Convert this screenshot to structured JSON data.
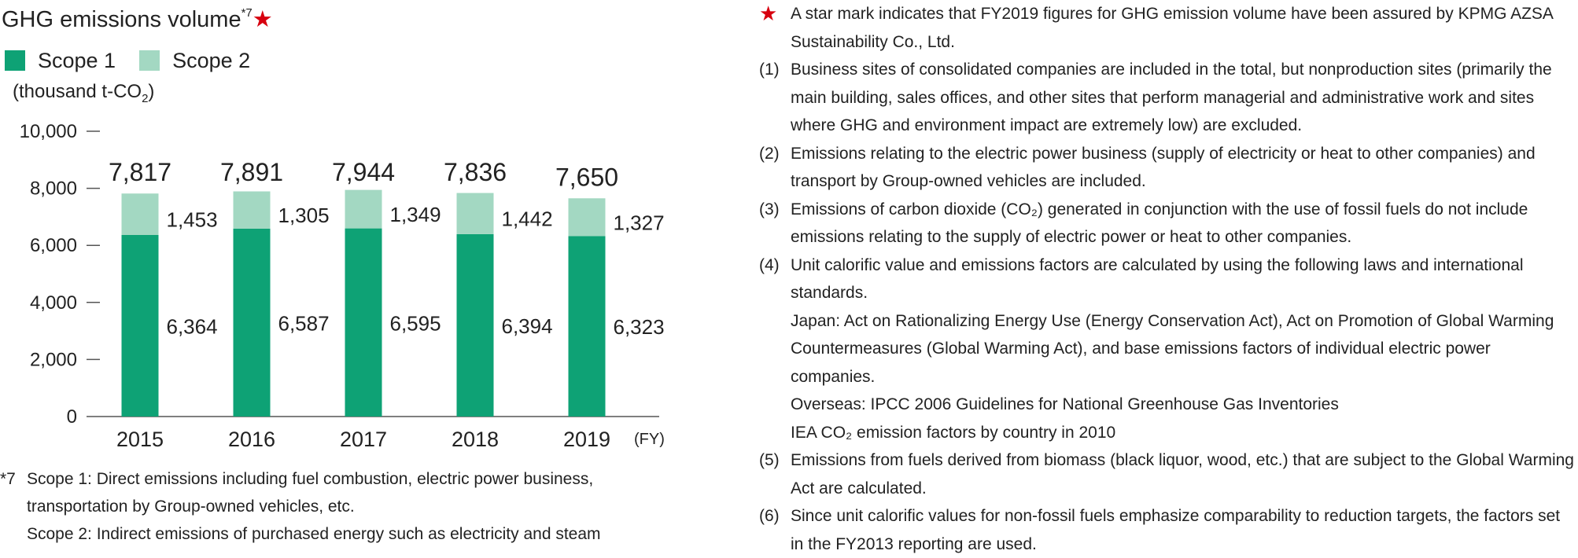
{
  "title": {
    "text": "GHG emissions volume",
    "footnote_ref": "*7",
    "star": "★"
  },
  "legend": [
    {
      "label": "Scope 1",
      "color": "#0ea275"
    },
    {
      "label": "Scope 2",
      "color": "#a3d8c2"
    }
  ],
  "unit": {
    "prefix": "(thousand t-CO",
    "sub": "2",
    "suffix": ")"
  },
  "chart_data": {
    "type": "bar",
    "stacked": true,
    "categories": [
      "2015",
      "2016",
      "2017",
      "2018",
      "2019"
    ],
    "x_unit": "(FY)",
    "series": [
      {
        "name": "Scope 1",
        "values": [
          6364,
          6587,
          6595,
          6394,
          6323
        ]
      },
      {
        "name": "Scope 2",
        "values": [
          1453,
          1305,
          1349,
          1442,
          1327
        ]
      }
    ],
    "totals": [
      7817,
      7891,
      7944,
      7836,
      7650
    ],
    "y_ticks": [
      0,
      2000,
      4000,
      6000,
      8000,
      10000
    ],
    "y_tick_labels": [
      "0",
      "2,000",
      "4,000",
      "6,000",
      "8,000",
      "10,000"
    ],
    "ylim": [
      0,
      10000
    ],
    "colors": {
      "scope1": "#0ea275",
      "scope2": "#a3d8c2",
      "axis": "#555555"
    }
  },
  "footnote7": {
    "mark": "*7",
    "lines": [
      "Scope 1: Direct emissions including fuel combustion, electric power business,",
      "transportation by Group-owned vehicles, etc.",
      "Scope 2: Indirect emissions of purchased energy such as electricity and steam"
    ]
  },
  "notes": [
    {
      "mark": "★",
      "lines": [
        "A star mark indicates that FY2019 figures for GHG emission volume have been assured by KPMG AZSA",
        "Sustainability Co., Ltd."
      ]
    },
    {
      "mark": "(1)",
      "lines": [
        "Business sites of consolidated companies are included in the total, but nonproduction sites (primarily the",
        "main building, sales offices, and other sites that perform managerial and administrative work and sites",
        "where GHG and environment impact are extremely low) are excluded."
      ]
    },
    {
      "mark": "(2)",
      "lines": [
        "Emissions relating to the electric power business (supply of electricity or heat to other companies) and",
        "transport by Group-owned vehicles are included."
      ]
    },
    {
      "mark": "(3)",
      "lines": [
        "Emissions of carbon dioxide (CO₂) generated in conjunction with the use of fossil fuels do not include",
        "emissions relating to the supply of electric power or heat to other companies."
      ]
    },
    {
      "mark": "(4)",
      "lines": [
        "Unit calorific value and emissions factors are calculated by using the following laws and international",
        "standards.",
        "Japan: Act on Rationalizing Energy Use (Energy Conservation Act), Act on Promotion of Global Warming",
        "Countermeasures (Global Warming Act), and base emissions factors of individual electric power",
        "companies.",
        "Overseas: IPCC 2006 Guidelines for National Greenhouse Gas Inventories",
        "IEA CO₂ emission factors by country in 2010"
      ]
    },
    {
      "mark": "(5)",
      "lines": [
        "Emissions from fuels derived from biomass (black liquor, wood, etc.) that are subject to the Global Warming",
        "Act are calculated."
      ]
    },
    {
      "mark": "(6)",
      "lines": [
        "Since unit calorific values for non-fossil fuels emphasize comparability to reduction targets, the factors set",
        "in the FY2013 reporting are used."
      ]
    }
  ]
}
